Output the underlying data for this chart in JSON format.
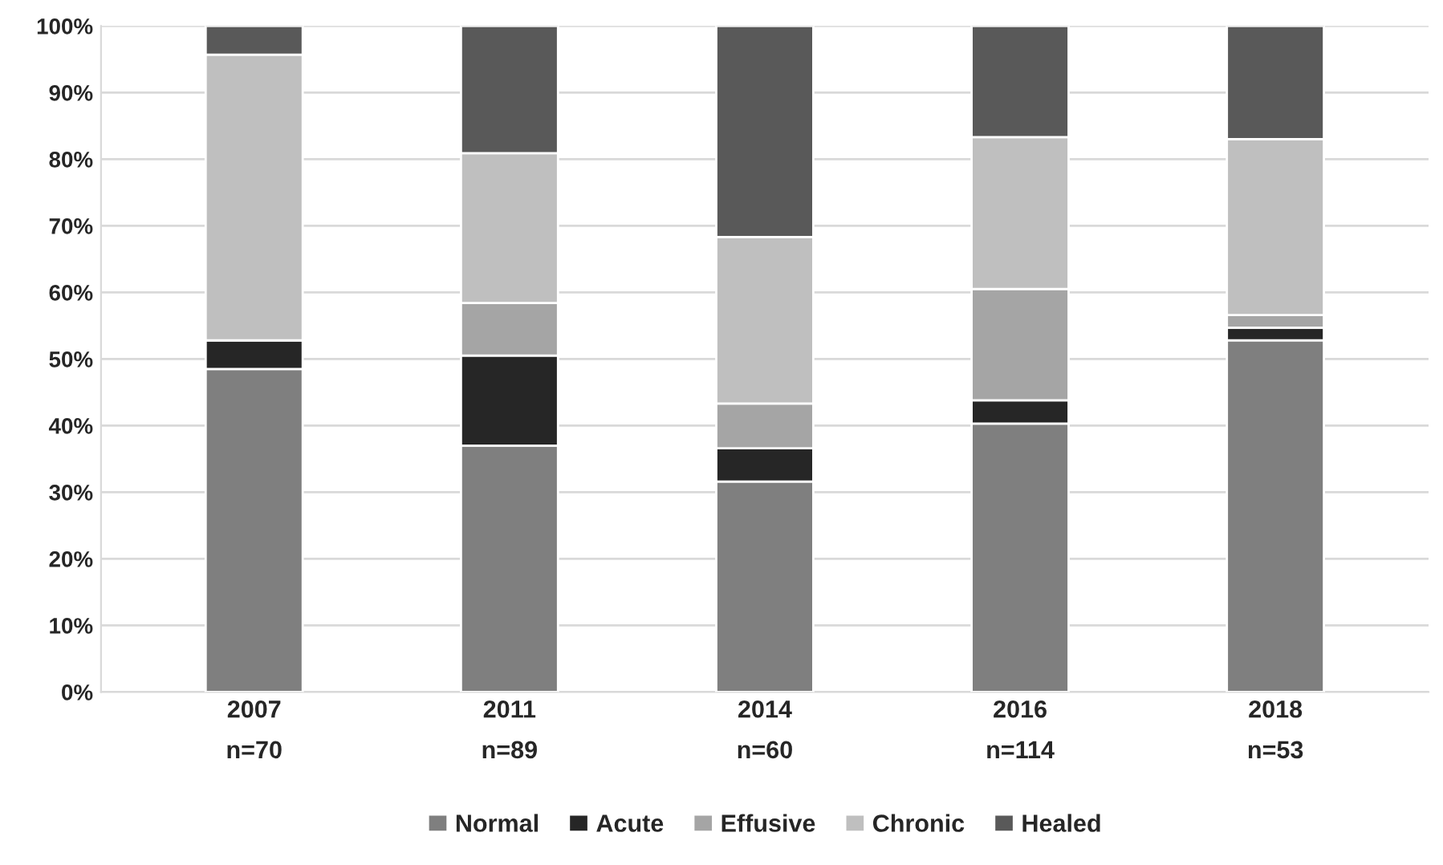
{
  "chart_data": {
    "type": "bar",
    "stacked": true,
    "categories": [
      "2007\nn=70",
      "2011\nn=89",
      "2014\nn=60",
      "2016\nn=114",
      "2018\nn=53"
    ],
    "series": [
      {
        "name": "Normal",
        "color": "#7f7f7f",
        "values": [
          48.5,
          37.0,
          31.6,
          40.3,
          52.8
        ]
      },
      {
        "name": "Acute",
        "color": "#262626",
        "values": [
          4.3,
          13.5,
          5.0,
          3.5,
          1.9
        ]
      },
      {
        "name": "Effusive",
        "color": "#a5a5a5",
        "values": [
          0,
          7.9,
          6.7,
          16.7,
          1.9
        ]
      },
      {
        "name": "Chronic",
        "color": "#bfbfbf",
        "values": [
          42.9,
          22.5,
          25.0,
          22.8,
          26.4
        ]
      },
      {
        "name": "Healed",
        "color": "#595959",
        "values": [
          4.3,
          19.1,
          31.7,
          16.7,
          17.0
        ]
      }
    ],
    "ylim": [
      0,
      100
    ],
    "yticks": [
      {
        "value": 0,
        "label": "0%"
      },
      {
        "value": 10,
        "label": "10%"
      },
      {
        "value": 20,
        "label": "20%"
      },
      {
        "value": 30,
        "label": "30%"
      },
      {
        "value": 40,
        "label": "40%"
      },
      {
        "value": 50,
        "label": "50%"
      },
      {
        "value": 60,
        "label": "60%"
      },
      {
        "value": 70,
        "label": "70%"
      },
      {
        "value": 80,
        "label": "80%"
      },
      {
        "value": 90,
        "label": "90%"
      },
      {
        "value": 100,
        "label": "100%"
      }
    ],
    "grid": "y",
    "legend": "bottom"
  }
}
